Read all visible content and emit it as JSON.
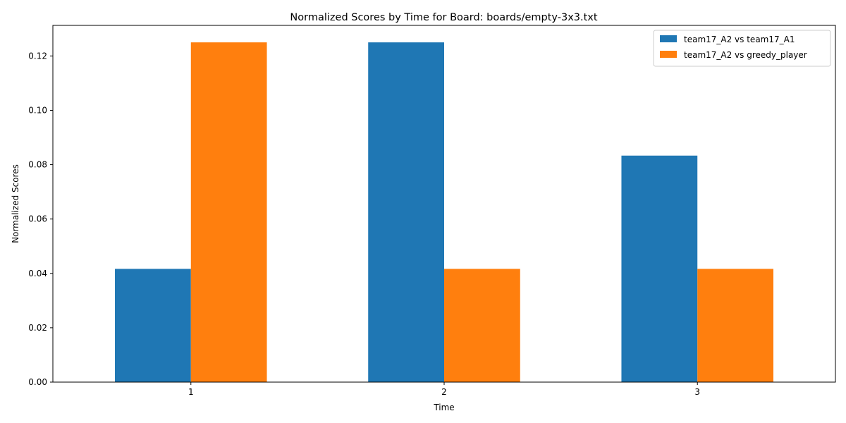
{
  "chart_data": {
    "type": "bar",
    "title": "Normalized Scores by Time for Board: boards/empty-3x3.txt",
    "xlabel": "Time",
    "ylabel": "Normalized Scores",
    "categories": [
      "1",
      "2",
      "3"
    ],
    "series": [
      {
        "name": "team17_A2 vs team17_A1",
        "color": "#1f77b4",
        "values": [
          0.041667,
          0.125,
          0.083333
        ]
      },
      {
        "name": "team17_A2 vs greedy_player",
        "color": "#ff7f0e",
        "values": [
          0.125,
          0.041667,
          0.041667
        ]
      }
    ],
    "ylim": [
      0,
      0.13125
    ],
    "yticks": [
      "0.00",
      "0.02",
      "0.04",
      "0.06",
      "0.08",
      "0.10",
      "0.12"
    ],
    "grid": false,
    "legend": "top-right"
  }
}
